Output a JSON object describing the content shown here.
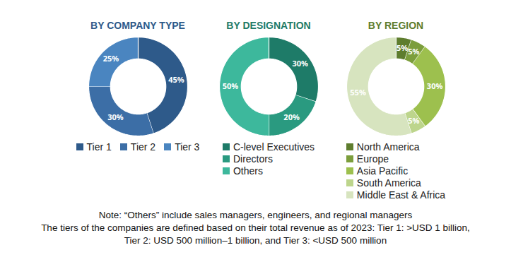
{
  "chart_data": [
    {
      "type": "donut",
      "title": "BY COMPANY TYPE",
      "categories": [
        "Tier 1",
        "Tier 2",
        "Tier 3"
      ],
      "values": [
        45,
        30,
        25
      ],
      "value_labels": [
        "45%",
        "30%",
        "25%"
      ],
      "colors": [
        "#2E5A8A",
        "#3C6EA6",
        "#4A85C0"
      ],
      "data_labels": true,
      "legend": "bottom"
    },
    {
      "type": "donut",
      "title": "BY DESIGNATION",
      "categories": [
        "C-level Executives",
        "Directors",
        "Others"
      ],
      "values": [
        30,
        20,
        50
      ],
      "value_labels": [
        "30%",
        "20%",
        "50%"
      ],
      "colors": [
        "#1E7B68",
        "#2A9A80",
        "#3DB89C"
      ],
      "data_labels": true,
      "legend": "bottom"
    },
    {
      "type": "donut",
      "title": "BY REGION",
      "categories": [
        "North America",
        "Europe",
        "Asia Pacific",
        "South America",
        "Middle East & Africa"
      ],
      "values": [
        5,
        5,
        30,
        5,
        55
      ],
      "value_labels": [
        "5%",
        "5%",
        "30%",
        "5%",
        "55%"
      ],
      "colors": [
        "#5E7D2E",
        "#7C9E3C",
        "#9DC04E",
        "#BDD58C",
        "#D7E4BF"
      ],
      "data_labels": true,
      "legend": "bottom"
    }
  ],
  "notes": [
    "Note: “Others” include sales managers, engineers, and regional managers",
    "The tiers of the companies are defined based on their total revenue as of 2023: Tier 1: >USD 1 billion,",
    "Tier 2: USD 500 million–1 billion, and Tier 3: <USD 500 million"
  ]
}
